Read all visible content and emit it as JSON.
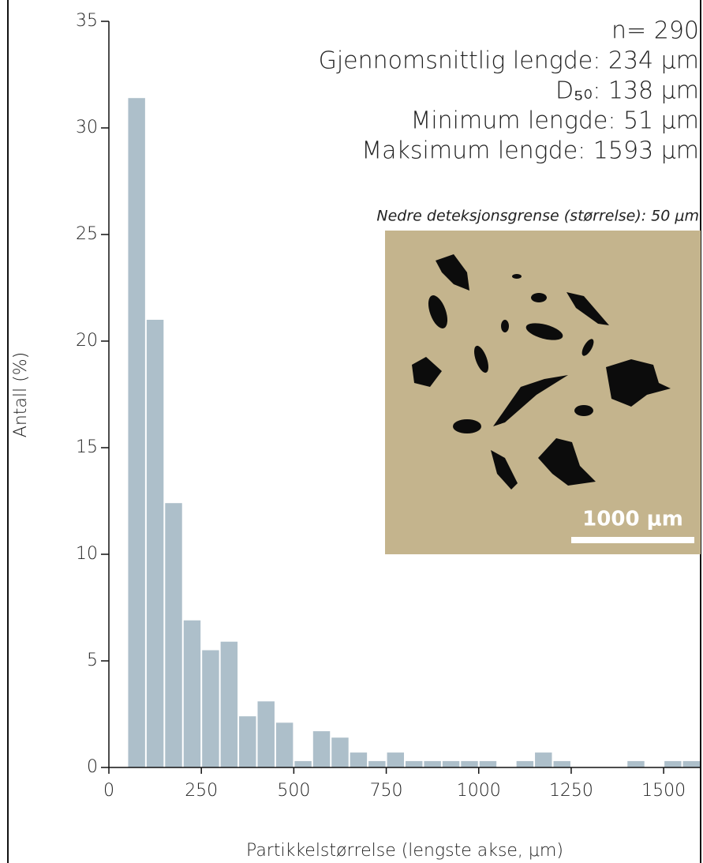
{
  "chart_data": {
    "type": "histogram",
    "x_label": "Partikkelstørrelse (lengste akse, μm)",
    "y_label": "Antall (%)",
    "annotations": [
      "n= 290",
      "Gjennomsnittlig lengde: 234 μm",
      "D₅₀: 138 μm",
      "Minimum lengde: 51 μm",
      "Maksimum lengde: 1593 μm"
    ],
    "note": "Nedre deteksjonsgrense (størrelse): 50 μm",
    "scale_bar_label": "1000 μm",
    "bins": [
      50,
      100,
      150,
      200,
      250,
      300,
      350,
      400,
      450,
      500,
      550,
      600,
      650,
      700,
      750,
      800,
      850,
      900,
      950,
      1000,
      1050,
      1100,
      1150,
      1200,
      1250,
      1300,
      1350,
      1400,
      1450,
      1500,
      1550,
      1600
    ],
    "values": [
      31.4,
      21.0,
      12.4,
      6.9,
      5.5,
      5.9,
      2.4,
      3.1,
      2.1,
      0.3,
      1.7,
      1.4,
      0.7,
      0.3,
      0.7,
      0.3,
      0.3,
      0.3,
      0.3,
      0.3,
      0,
      0.3,
      0.7,
      0.3,
      0,
      0,
      0,
      0.3,
      0,
      0.3,
      0.3
    ],
    "color": "#adbfca",
    "xlim": [
      0,
      1600
    ],
    "xticks": [
      0,
      250,
      500,
      750,
      1000,
      1250,
      1500
    ],
    "ylim": [
      0,
      35
    ],
    "yticks": [
      0,
      5,
      10,
      15,
      20,
      25,
      30,
      35
    ]
  }
}
